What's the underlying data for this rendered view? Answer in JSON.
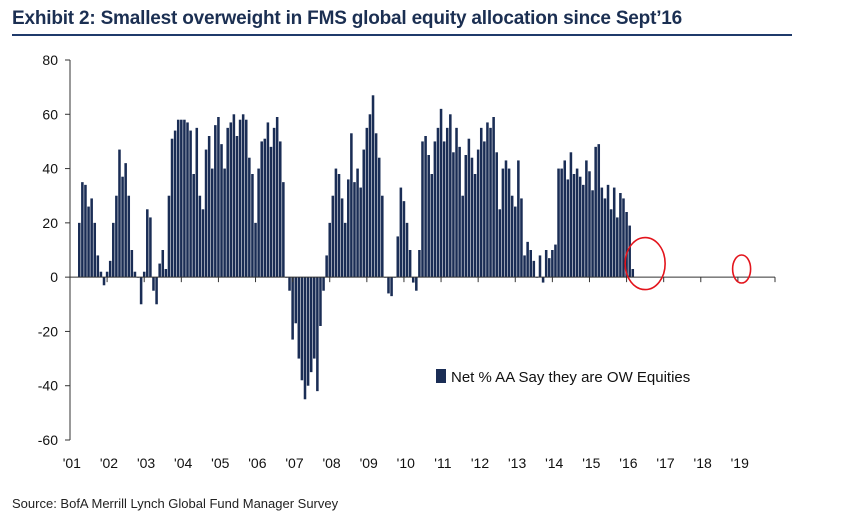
{
  "title": "Exhibit 2: Smallest overweight in FMS global equity allocation since Sept’16",
  "source": "Source:  BofA Merrill Lynch Global Fund Manager Survey",
  "colors": {
    "bar": "#1a2d55",
    "axis": "#333333",
    "highlight": "#e3141c",
    "title_rule": "#1f3a6b"
  },
  "chart_data": {
    "type": "bar",
    "title": "Exhibit 2: Smallest overweight in FMS global equity allocation since Sept’16",
    "xlabel": "",
    "ylabel": "",
    "ylim": [
      -60,
      80
    ],
    "yticks": [
      80,
      60,
      40,
      20,
      0,
      -20,
      -40,
      -60
    ],
    "xlim": [
      2001.0,
      2020.0
    ],
    "xtick_labels": [
      "'01",
      "'02",
      "'03",
      "'04",
      "'05",
      "'06",
      "'07",
      "'08",
      "'09",
      "'10",
      "'11",
      "'12",
      "'13",
      "'14",
      "'15",
      "'16",
      "'17",
      "'18",
      "'19"
    ],
    "xtick_years": [
      2001,
      2002,
      2003,
      2004,
      2005,
      2006,
      2007,
      2008,
      2009,
      2010,
      2011,
      2012,
      2013,
      2014,
      2015,
      2016,
      2017,
      2018,
      2019
    ],
    "grid": false,
    "legend_position": "center-right",
    "annotations": [
      {
        "type": "ellipse",
        "near_year": 2016.5,
        "note": "red circle around 2016 low"
      },
      {
        "type": "ellipse",
        "near_year": 2019.1,
        "note": "red circle around latest reading"
      }
    ],
    "series": [
      {
        "name": "Net % AA Say they are OW Equities",
        "start_year": 2001.25,
        "frequency": "monthly",
        "values": [
          20,
          35,
          34,
          26,
          29,
          20,
          8,
          2,
          -3,
          2,
          6,
          20,
          30,
          47,
          37,
          42,
          30,
          10,
          2,
          0,
          -10,
          2,
          25,
          22,
          -5,
          -10,
          5,
          10,
          3,
          30,
          51,
          54,
          58,
          58,
          58,
          57,
          54,
          38,
          55,
          30,
          25,
          47,
          52,
          40,
          56,
          59,
          49,
          40,
          55,
          57,
          60,
          52,
          58,
          60,
          58,
          44,
          38,
          20,
          40,
          50,
          51,
          57,
          48,
          55,
          59,
          50,
          35,
          0,
          -5,
          -23,
          -17,
          -30,
          -38,
          -45,
          -40,
          -35,
          -30,
          -42,
          -18,
          -5,
          8,
          20,
          30,
          40,
          38,
          29,
          20,
          36,
          53,
          35,
          40,
          33,
          47,
          55,
          60,
          67,
          53,
          44,
          30,
          0,
          -6,
          -7,
          0,
          15,
          33,
          28,
          20,
          10,
          -2,
          -5,
          10,
          50,
          52,
          45,
          38,
          50,
          55,
          62,
          50,
          55,
          60,
          46,
          55,
          48,
          30,
          45,
          51,
          44,
          38,
          47,
          55,
          50,
          57,
          55,
          59,
          46,
          25,
          40,
          43,
          40,
          30,
          26,
          43,
          29,
          8,
          13,
          10,
          6,
          0,
          8,
          -2,
          10,
          7,
          10,
          12,
          40,
          40,
          43,
          36,
          46,
          38,
          40,
          37,
          34,
          43,
          39,
          32,
          48,
          49,
          33,
          29,
          34,
          25,
          33,
          22,
          31,
          29,
          24,
          19,
          3
        ]
      }
    ]
  }
}
